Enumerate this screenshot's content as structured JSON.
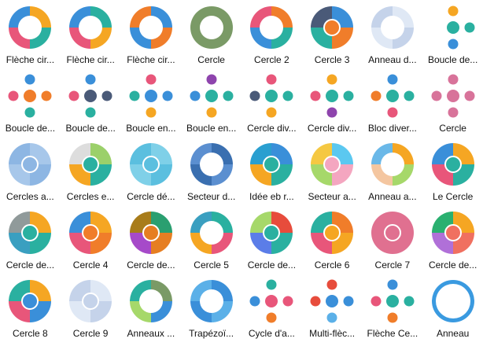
{
  "items": [
    {
      "label": "Flèche cir...",
      "colors": [
        "#f5a623",
        "#2ab0a0",
        "#e8567a",
        "#3a8fd9"
      ],
      "style": "ring"
    },
    {
      "label": "Flèche cir...",
      "colors": [
        "#2ab0a0",
        "#f5a623",
        "#e8567a",
        "#3a8fd9"
      ],
      "style": "ring"
    },
    {
      "label": "Flèche cir...",
      "colors": [
        "#3a8fd9",
        "#f07d2a",
        "#3a8fd9",
        "#f07d2a"
      ],
      "style": "ring"
    },
    {
      "label": "Cercle",
      "colors": [
        "#7a9a66",
        "#7a9a66",
        "#7a9a66",
        "#7a9a66"
      ],
      "style": "ring"
    },
    {
      "label": "Cercle 2",
      "colors": [
        "#f07d2a",
        "#2ab0a0",
        "#3a8fd9",
        "#e8567a"
      ],
      "style": "ring"
    },
    {
      "label": "Cercle 3",
      "colors": [
        "#3a8fd9",
        "#f07d2a",
        "#2ab0a0",
        "#4a5a78"
      ],
      "style": "pie"
    },
    {
      "label": "Anneau d...",
      "colors": [
        "#dfe8f5",
        "#c5d3ea",
        "#dfe8f5",
        "#c5d3ea"
      ],
      "style": "ring"
    },
    {
      "label": "Boucle de...",
      "colors": [
        "#f5a623",
        "#2ab0a0",
        "#3a8fd9",
        "#fff"
      ],
      "style": "dots"
    },
    {
      "label": "Boucle de...",
      "colors": [
        "#3a8fd9",
        "#f07d2a",
        "#2ab0a0",
        "#e8567a"
      ],
      "style": "dots"
    },
    {
      "label": "Boucle de...",
      "colors": [
        "#3a8fd9",
        "#4a5a78",
        "#2ab0a0",
        "#e8567a"
      ],
      "style": "dots"
    },
    {
      "label": "Boucle en...",
      "colors": [
        "#e8567a",
        "#3a8fd9",
        "#f5a623",
        "#2ab0a0"
      ],
      "style": "dots"
    },
    {
      "label": "Boucle en...",
      "colors": [
        "#8e44ad",
        "#2ab0a0",
        "#f5a623",
        "#3a8fd9"
      ],
      "style": "dots"
    },
    {
      "label": "Cercle div...",
      "colors": [
        "#e8567a",
        "#2ab0a0",
        "#f5a623",
        "#4a5a78"
      ],
      "style": "dots"
    },
    {
      "label": "Cercle div...",
      "colors": [
        "#f5a623",
        "#2ab0a0",
        "#8e44ad",
        "#e8567a"
      ],
      "style": "dots"
    },
    {
      "label": "Bloc diver...",
      "colors": [
        "#3a8fd9",
        "#2ab0a0",
        "#e8567a",
        "#f07d2a"
      ],
      "style": "dots"
    },
    {
      "label": "Cercle",
      "colors": [
        "#d8739a",
        "#d8739a",
        "#d8739a",
        "#d8739a"
      ],
      "style": "dots"
    },
    {
      "label": "Cercles a...",
      "colors": [
        "#a7c7ea",
        "#8db6e3",
        "#a7c7ea",
        "#8db6e3"
      ],
      "style": "pie"
    },
    {
      "label": "Cercles e...",
      "colors": [
        "#9bd06a",
        "#2ab0a0",
        "#f5a623",
        "#ddd"
      ],
      "style": "pie"
    },
    {
      "label": "Cercle dé...",
      "colors": [
        "#7fd0e8",
        "#5bbfdf",
        "#7fd0e8",
        "#5bbfdf"
      ],
      "style": "pie"
    },
    {
      "label": "Secteur d...",
      "colors": [
        "#3a6fb0",
        "#5b8fd0",
        "#3a6fb0",
        "#5b8fd0"
      ],
      "style": "ring"
    },
    {
      "label": "Idée eb r...",
      "colors": [
        "#3a8fd9",
        "#2ab0a0",
        "#f5a623",
        "#2a9fd0"
      ],
      "style": "pie"
    },
    {
      "label": "Secteur a...",
      "colors": [
        "#5bc8f0",
        "#f4a6c0",
        "#a6d86a",
        "#f5c842"
      ],
      "style": "pie"
    },
    {
      "label": "Anneau a...",
      "colors": [
        "#f5a623",
        "#a6d86a",
        "#f4c6a0",
        "#6ab8e8"
      ],
      "style": "ring"
    },
    {
      "label": "Le Cercle",
      "colors": [
        "#f5a623",
        "#2ab0a0",
        "#e8567a",
        "#3a8fd9"
      ],
      "style": "pie"
    },
    {
      "label": "Cercle de...",
      "colors": [
        "#f5a623",
        "#2ab0a0",
        "#3a9fc0",
        "#909a9a"
      ],
      "style": "pie"
    },
    {
      "label": "Cercle 4",
      "colors": [
        "#f5a623",
        "#f07d2a",
        "#e8567a",
        "#3a8fd9"
      ],
      "style": "pie"
    },
    {
      "label": "Cercle de...",
      "colors": [
        "#2a9f70",
        "#e67e22",
        "#a64ac9",
        "#a87c1a"
      ],
      "style": "pie"
    },
    {
      "label": "Cercle 5",
      "colors": [
        "#2ab0a0",
        "#e8567a",
        "#f5a623",
        "#3a9fc0"
      ],
      "style": "ring"
    },
    {
      "label": "Cercle de...",
      "colors": [
        "#e74c3c",
        "#2ab0a0",
        "#5b7de8",
        "#a6d86a"
      ],
      "style": "pie"
    },
    {
      "label": "Cercle 6",
      "colors": [
        "#f07d2a",
        "#f5a623",
        "#e8567a",
        "#2ab0a0"
      ],
      "style": "pie"
    },
    {
      "label": "Cercle 7",
      "colors": [
        "#e07090",
        "#e07090",
        "#e07090",
        "#e07090"
      ],
      "style": "pie"
    },
    {
      "label": "Cercle de...",
      "colors": [
        "#f5a623",
        "#f07060",
        "#b070d8",
        "#2ab070"
      ],
      "style": "pie"
    },
    {
      "label": "Cercle 8",
      "colors": [
        "#f5a623",
        "#3a8fd9",
        "#e8567a",
        "#2ab0a0"
      ],
      "style": "pie"
    },
    {
      "label": "Cercle 9",
      "colors": [
        "#dfe8f5",
        "#c5d3ea",
        "#dfe8f5",
        "#c5d3ea"
      ],
      "style": "pie"
    },
    {
      "label": "Anneaux ...",
      "colors": [
        "#7a9a66",
        "#3a8fd9",
        "#a6d86a",
        "#2ab0a0"
      ],
      "style": "ring"
    },
    {
      "label": "Trapézoï...",
      "colors": [
        "#3a8fd9",
        "#5bb0e8",
        "#3a8fd9",
        "#5bb0e8"
      ],
      "style": "ring"
    },
    {
      "label": "Cycle d'a...",
      "colors": [
        "#2ab0a0",
        "#e8567a",
        "#f07d2a",
        "#3a8fd9"
      ],
      "style": "dots"
    },
    {
      "label": "Multi-flèc...",
      "colors": [
        "#e74c3c",
        "#3a8fd9",
        "#5bb0e8",
        "#e74c3c"
      ],
      "style": "dots"
    },
    {
      "label": "Flèche Ce...",
      "colors": [
        "#3a8fd9",
        "#2ab0a0",
        "#f07d2a",
        "#e8567a"
      ],
      "style": "dots"
    },
    {
      "label": "Anneau",
      "colors": [
        "#3a9ae0",
        "#3a9ae0",
        "#3a9ae0",
        "#3a9ae0"
      ],
      "style": "thin"
    }
  ]
}
